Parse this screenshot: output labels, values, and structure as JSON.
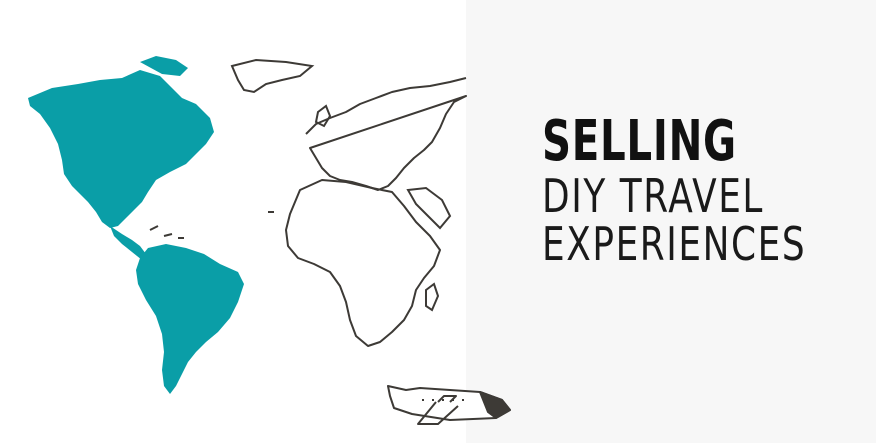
{
  "headline": {
    "line1": "SELLING",
    "line2": "DIY TRAVEL",
    "line3": "EXPERIENCES"
  },
  "colors": {
    "americas": "#0a9ea7",
    "outline": "#3d3a36",
    "panel": "#f7f7f7",
    "text": "#111111"
  },
  "icons": [
    "world-map",
    "airplane-icon"
  ]
}
